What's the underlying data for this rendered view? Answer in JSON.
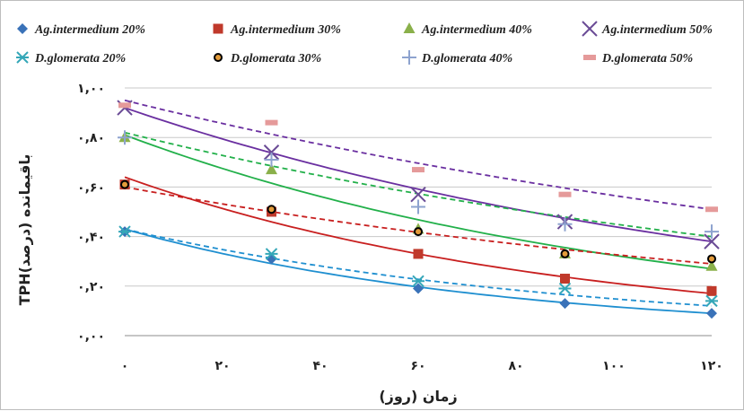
{
  "chart_data": {
    "type": "scatter",
    "xlabel": "زمان (روز)",
    "ylabel": "TPHباقیمانده (درصد)",
    "xlim": [
      0,
      120
    ],
    "ylim": [
      0,
      1.0
    ],
    "x_ticks": [
      0,
      20,
      40,
      60,
      80,
      100,
      120
    ],
    "y_ticks": [
      0,
      0.2,
      0.4,
      0.6,
      0.8,
      1.0
    ],
    "x_tick_labels": [
      "۰",
      "۲۰",
      "۴۰",
      "۶۰",
      "۸۰",
      "۱۰۰",
      "۱۲۰"
    ],
    "y_tick_labels": [
      "۰,۰۰",
      "۰,۲۰",
      "۰,۴۰",
      "۰,۶۰",
      "۰,۸۰",
      "۱,۰۰"
    ],
    "grid": "horizontal",
    "legend_position": "top",
    "x": [
      0,
      30,
      60,
      90,
      120
    ],
    "series": [
      {
        "name": "Ag.intermedium 20%",
        "marker": "diamond",
        "color": "#3a72b8",
        "values": [
          0.42,
          0.31,
          0.19,
          0.13,
          0.09
        ],
        "trend_start": 0.43,
        "trend_end": 0.09,
        "trend_style": "solid"
      },
      {
        "name": "Ag.intermedium 30%",
        "marker": "square",
        "color": "#c0392b",
        "values": [
          0.61,
          0.5,
          0.33,
          0.23,
          0.18
        ],
        "trend_start": 0.64,
        "trend_end": 0.17,
        "trend_style": "solid"
      },
      {
        "name": "Ag.intermedium 40%",
        "marker": "triangle",
        "color": "#8ab04a",
        "values": [
          0.8,
          0.67,
          0.43,
          0.33,
          0.28
        ],
        "trend_start": 0.81,
        "trend_end": 0.27,
        "trend_style": "solid"
      },
      {
        "name": "Ag.intermedium 50%",
        "marker": "x",
        "color": "#6a4b96",
        "values": [
          0.92,
          0.74,
          0.57,
          0.46,
          0.38
        ],
        "trend_start": 0.92,
        "trend_end": 0.38,
        "trend_style": "solid"
      },
      {
        "name": "D.glomerata 20%",
        "marker": "asterisk",
        "color": "#35a7b8",
        "values": [
          0.42,
          0.33,
          0.22,
          0.19,
          0.14
        ],
        "trend_start": 0.43,
        "trend_end": 0.12,
        "trend_style": "dashed"
      },
      {
        "name": "D.glomerata 30%",
        "marker": "circle",
        "color": "#e39b3a",
        "values": [
          0.61,
          0.51,
          0.42,
          0.33,
          0.31
        ],
        "trend_start": 0.6,
        "trend_end": 0.29,
        "trend_style": "dashed"
      },
      {
        "name": "D.glomerata 40%",
        "marker": "plus",
        "color": "#8ea3cf",
        "values": [
          0.8,
          0.71,
          0.52,
          0.45,
          0.42
        ],
        "trend_start": 0.82,
        "trend_end": 0.4,
        "trend_style": "dashed"
      },
      {
        "name": "D.glomerata 50%",
        "marker": "dash",
        "color": "#e59a9a",
        "values": [
          0.93,
          0.86,
          0.67,
          0.57,
          0.51
        ],
        "trend_start": 0.95,
        "trend_end": 0.51,
        "trend_style": "dashed"
      }
    ],
    "trend_colors": {
      "Ag.intermedium 20%": "#1f8fd0",
      "Ag.intermedium 30%": "#c81f1f",
      "Ag.intermedium 40%": "#22b04a",
      "Ag.intermedium 50%": "#6a2fa0",
      "D.glomerata 20%": "#1f8fd0",
      "D.glomerata 30%": "#c81f1f",
      "D.glomerata 40%": "#22b04a",
      "D.glomerata 50%": "#6a2fa0"
    }
  }
}
